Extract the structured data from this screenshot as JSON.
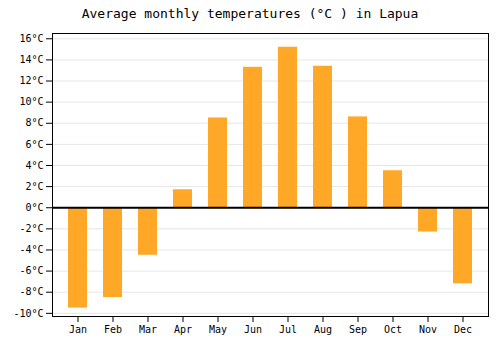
{
  "chart_data": {
    "type": "bar",
    "title": "Average monthly temperatures (°C ) in Lapua",
    "categories": [
      "Jan",
      "Feb",
      "Mar",
      "Apr",
      "May",
      "Jun",
      "Jul",
      "Aug",
      "Sep",
      "Oct",
      "Nov",
      "Dec"
    ],
    "values": [
      -9.5,
      -8.5,
      -4.5,
      1.7,
      8.5,
      13.3,
      15.2,
      13.4,
      8.6,
      3.5,
      -2.3,
      -7.2
    ],
    "color": "#FFA726",
    "ylim": [
      -10.3,
      16.5
    ],
    "yticks": [
      {
        "value": -10,
        "label": "-10°C"
      },
      {
        "value": -8,
        "label": "-8°C"
      },
      {
        "value": -6,
        "label": "-6°C"
      },
      {
        "value": -4,
        "label": "-4°C"
      },
      {
        "value": -2,
        "label": "-2°C"
      },
      {
        "value": 0,
        "label": "0°C"
      },
      {
        "value": 2,
        "label": "2°C"
      },
      {
        "value": 4,
        "label": "4°C"
      },
      {
        "value": 6,
        "label": "6°C"
      },
      {
        "value": 8,
        "label": "8°C"
      },
      {
        "value": 10,
        "label": "10°C"
      },
      {
        "value": 12,
        "label": "12°C"
      },
      {
        "value": 14,
        "label": "14°C"
      },
      {
        "value": 16,
        "label": "16°C"
      }
    ],
    "grid": true
  }
}
